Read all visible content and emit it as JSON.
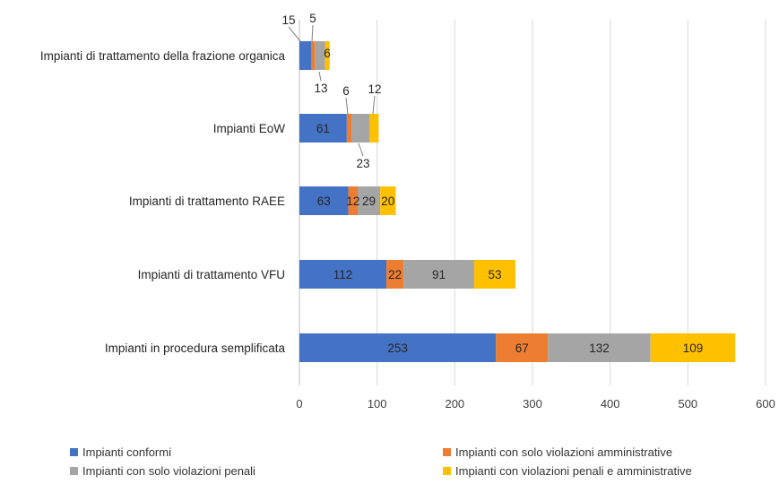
{
  "chart_data": {
    "type": "bar",
    "orientation": "horizontal",
    "stacked": true,
    "title": "",
    "xlabel": "",
    "ylabel": "",
    "xlim": [
      0,
      600
    ],
    "x_ticks": [
      0,
      100,
      200,
      300,
      400,
      500,
      600
    ],
    "grid": true,
    "legend_position": "bottom",
    "categories": [
      "Impianti di trattamento della frazione organica",
      "Impianti EoW",
      "Impianti di trattamento RAEE",
      "Impianti di trattamento VFU",
      "Impianti in procedura semplificata"
    ],
    "series": [
      {
        "name": "Impianti conformi",
        "color": "#4472C4",
        "values": [
          15,
          61,
          63,
          112,
          253
        ]
      },
      {
        "name": "Impianti con solo violazioni amministrative",
        "color": "#ED7D31",
        "values": [
          5,
          6,
          12,
          22,
          67
        ]
      },
      {
        "name": "Impianti con solo violazioni penali",
        "color": "#A5A5A5",
        "values": [
          13,
          23,
          29,
          91,
          132
        ]
      },
      {
        "name": "Impianti con violazioni penali e amministrative",
        "color": "#FFC000",
        "values": [
          6,
          12,
          20,
          53,
          109
        ]
      }
    ]
  }
}
